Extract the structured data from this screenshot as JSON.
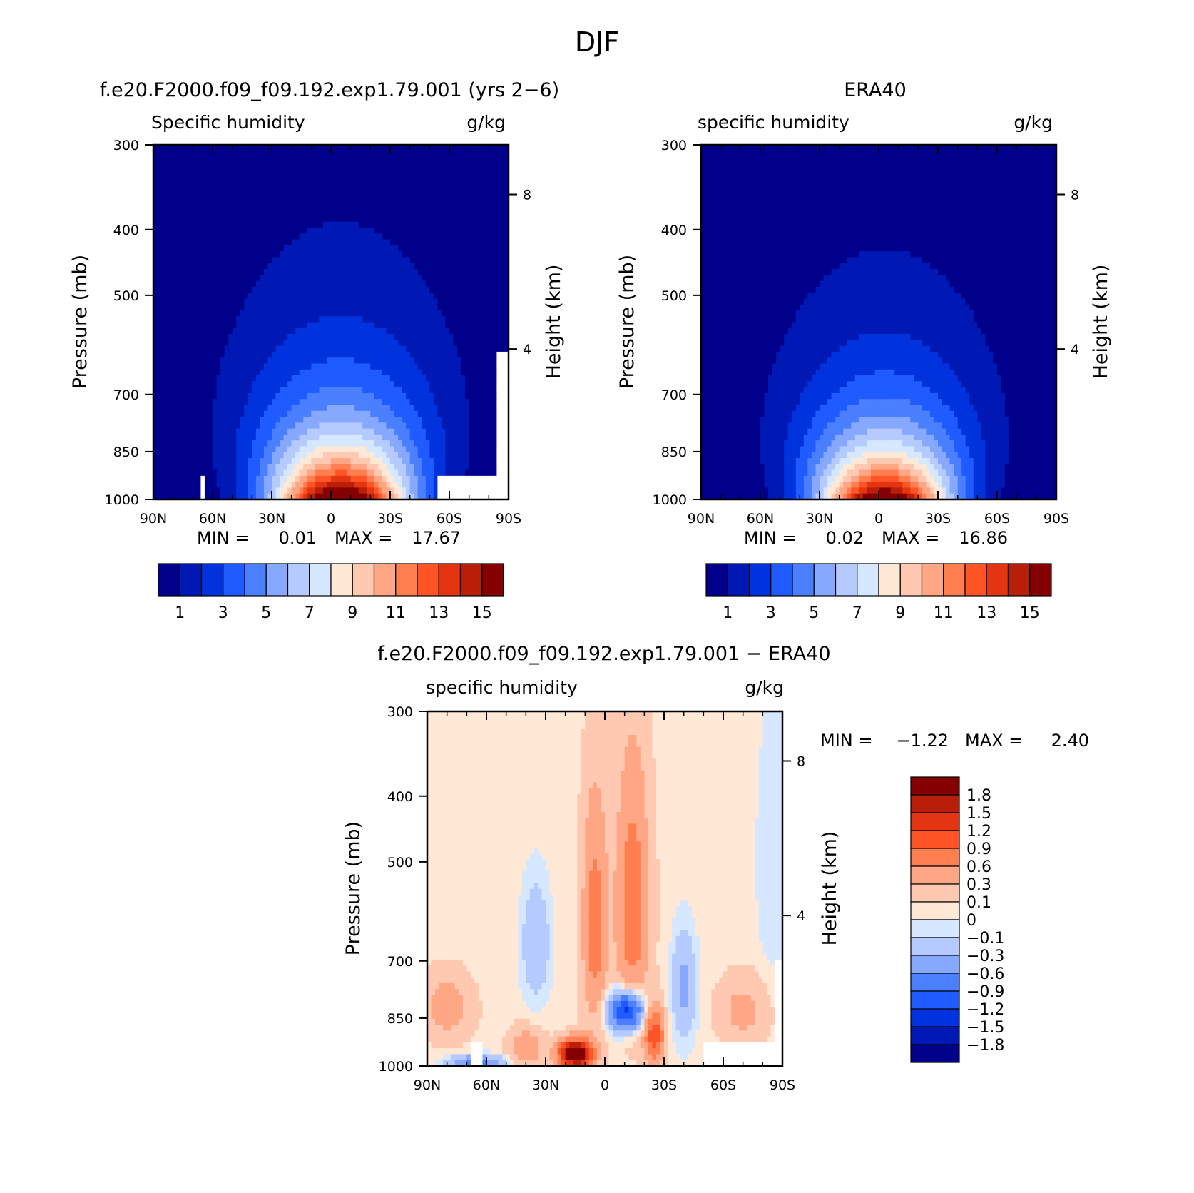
{
  "figure": {
    "main_title": "DJF"
  },
  "colors": {
    "abs_scale": [
      "#00008b",
      "#0018b4",
      "#0033dd",
      "#1f5bff",
      "#4a7fff",
      "#86a8ff",
      "#b5cbff",
      "#d6e8ff",
      "#ffe8d6",
      "#ffc8b0",
      "#ffa684",
      "#ff7f50",
      "#ff5526",
      "#e33512",
      "#b81e08",
      "#850000"
    ],
    "diff_scale": [
      "#00008b",
      "#0018b4",
      "#0033dd",
      "#1f5bff",
      "#4a7fff",
      "#86a8ff",
      "#b5cbff",
      "#d6e8ff",
      "#ffe8d6",
      "#ffc8b0",
      "#ffa684",
      "#ff7f50",
      "#ff5526",
      "#e33512",
      "#b81e08",
      "#850000"
    ],
    "axis": "#000000",
    "missing": "#ffffff"
  },
  "chart_data": [
    {
      "type": "heatmap",
      "panel": "model",
      "title": "f.e20.F2000.f09_f09.192.exp1.79.001 (yrs 2−6)",
      "left_string": "Specific humidity",
      "right_string": "g/kg",
      "xlabel": "",
      "ylabel": "Pressure (mb)",
      "y2label": "Height (km)",
      "x_ticks": [
        "90N",
        "60N",
        "30N",
        "0",
        "30S",
        "60S",
        "90S"
      ],
      "x_tick_values": [
        -90,
        -60,
        -30,
        0,
        30,
        60,
        90
      ],
      "xlim": [
        -90,
        90
      ],
      "y_ticks": [
        300,
        400,
        500,
        700,
        850,
        1000
      ],
      "y2_ticks": [
        8,
        4
      ],
      "y2_tick_pressures": [
        355,
        600
      ],
      "ylim": [
        1000,
        300
      ],
      "stats": {
        "min_label": "MIN =",
        "min": "0.01",
        "max_label": "MAX =",
        "max": "17.67"
      },
      "colorbar": {
        "levels": [
          0,
          1,
          2,
          3,
          4,
          5,
          6,
          7,
          8,
          9,
          10,
          11,
          12,
          13,
          14,
          15
        ],
        "labels": [
          "1",
          "3",
          "5",
          "7",
          "9",
          "11",
          "13",
          "15"
        ],
        "label_levels": [
          1,
          3,
          5,
          7,
          9,
          11,
          13,
          15
        ]
      },
      "field": {
        "surface_q": 17.67,
        "peak_lat": 5,
        "width_deg": 34,
        "scale_height_p": 210,
        "missing_regions": [
          {
            "lat": [
              55,
              90
            ],
            "p": [
              925,
              1000
            ]
          },
          {
            "lat": [
              -65,
              -64
            ],
            "p": [
              930,
              1000
            ]
          },
          {
            "lat": [
              85,
              90
            ],
            "p": [
              600,
              925
            ]
          }
        ]
      }
    },
    {
      "type": "heatmap",
      "panel": "obs",
      "title": "ERA40",
      "left_string": "specific humidity",
      "right_string": "g/kg",
      "xlabel": "",
      "ylabel": "Pressure (mb)",
      "y2label": "Height (km)",
      "x_ticks": [
        "90N",
        "60N",
        "30N",
        "0",
        "30S",
        "60S",
        "90S"
      ],
      "x_tick_values": [
        -90,
        -60,
        -30,
        0,
        30,
        60,
        90
      ],
      "xlim": [
        -90,
        90
      ],
      "y_ticks": [
        300,
        400,
        500,
        700,
        850,
        1000
      ],
      "y2_ticks": [
        8,
        4
      ],
      "y2_tick_pressures": [
        355,
        600
      ],
      "ylim": [
        1000,
        300
      ],
      "stats": {
        "min_label": "MIN =",
        "min": "0.02",
        "max_label": "MAX =",
        "max": "16.86"
      },
      "colorbar": {
        "levels": [
          0,
          1,
          2,
          3,
          4,
          5,
          6,
          7,
          8,
          9,
          10,
          11,
          12,
          13,
          14,
          15
        ],
        "labels": [
          "1",
          "3",
          "5",
          "7",
          "9",
          "11",
          "13",
          "15"
        ],
        "label_levels": [
          1,
          3,
          5,
          7,
          9,
          11,
          13,
          15
        ]
      },
      "field": {
        "surface_q": 16.86,
        "peak_lat": 3,
        "width_deg": 33,
        "scale_height_p": 200,
        "missing_regions": []
      }
    },
    {
      "type": "heatmap",
      "panel": "difference",
      "title": "f.e20.F2000.f09_f09.192.exp1.79.001 − ERA40",
      "left_string": "specific humidity",
      "right_string": "g/kg",
      "xlabel": "",
      "ylabel": "Pressure (mb)",
      "y2label": "Height (km)",
      "x_ticks": [
        "90N",
        "60N",
        "30N",
        "0",
        "30S",
        "60S",
        "90S"
      ],
      "x_tick_values": [
        -90,
        -60,
        -30,
        0,
        30,
        60,
        90
      ],
      "xlim": [
        -90,
        90
      ],
      "y_ticks": [
        300,
        400,
        500,
        700,
        850,
        1000
      ],
      "y2_ticks": [
        8,
        4
      ],
      "y2_tick_pressures": [
        355,
        600
      ],
      "ylim": [
        1000,
        300
      ],
      "stats": {
        "min_label": "MIN =",
        "min": "−1.22",
        "max_label": "MAX =",
        "max": "2.40"
      },
      "colorbar": {
        "levels": [
          -99,
          -1.8,
          -1.5,
          -1.2,
          -0.9,
          -0.6,
          -0.3,
          -0.1,
          0,
          0.1,
          0.3,
          0.6,
          0.9,
          1.2,
          1.5,
          1.8
        ],
        "labels": [
          "−1.8",
          "−1.5",
          "−1.2",
          "−0.9",
          "−0.6",
          "−0.3",
          "−0.1",
          "0",
          "0.1",
          "0.3",
          "0.6",
          "0.9",
          "1.2",
          "1.5",
          "1.8"
        ]
      },
      "field": {
        "background": 0.05,
        "blobs": [
          {
            "lat": -15,
            "p": 960,
            "slat": 8,
            "sp": 45,
            "amp": 2.4
          },
          {
            "lat": -5,
            "p": 620,
            "slat": 6,
            "sp": 230,
            "amp": 0.75
          },
          {
            "lat": 14,
            "p": 580,
            "slat": 8,
            "sp": 240,
            "amp": 0.8
          },
          {
            "lat": 25,
            "p": 900,
            "slat": 5,
            "sp": 90,
            "amp": 1.1
          },
          {
            "lat": 11,
            "p": 830,
            "slat": 9,
            "sp": 55,
            "amp": -1.5
          },
          {
            "lat": -35,
            "p": 660,
            "slat": 7,
            "sp": 130,
            "amp": -0.35
          },
          {
            "lat": 40,
            "p": 770,
            "slat": 6,
            "sp": 140,
            "amp": -0.42
          },
          {
            "lat": -65,
            "p": 990,
            "slat": 13,
            "sp": 25,
            "amp": -0.8
          },
          {
            "lat": -80,
            "p": 820,
            "slat": 12,
            "sp": 90,
            "amp": 0.4
          },
          {
            "lat": 70,
            "p": 830,
            "slat": 12,
            "sp": 90,
            "amp": 0.35
          },
          {
            "lat": 85,
            "p": 500,
            "slat": 8,
            "sp": 220,
            "amp": -0.15
          },
          {
            "lat": -40,
            "p": 940,
            "slat": 8,
            "sp": 60,
            "amp": 0.5
          }
        ],
        "missing_regions": [
          {
            "lat": [
              50,
              90
            ],
            "p": [
              925,
              1000
            ]
          },
          {
            "lat": [
              -67,
              -63
            ],
            "p": [
              925,
              1000
            ]
          },
          {
            "lat": [
              86,
              90
            ],
            "p": [
              700,
              925
            ]
          }
        ]
      }
    }
  ]
}
